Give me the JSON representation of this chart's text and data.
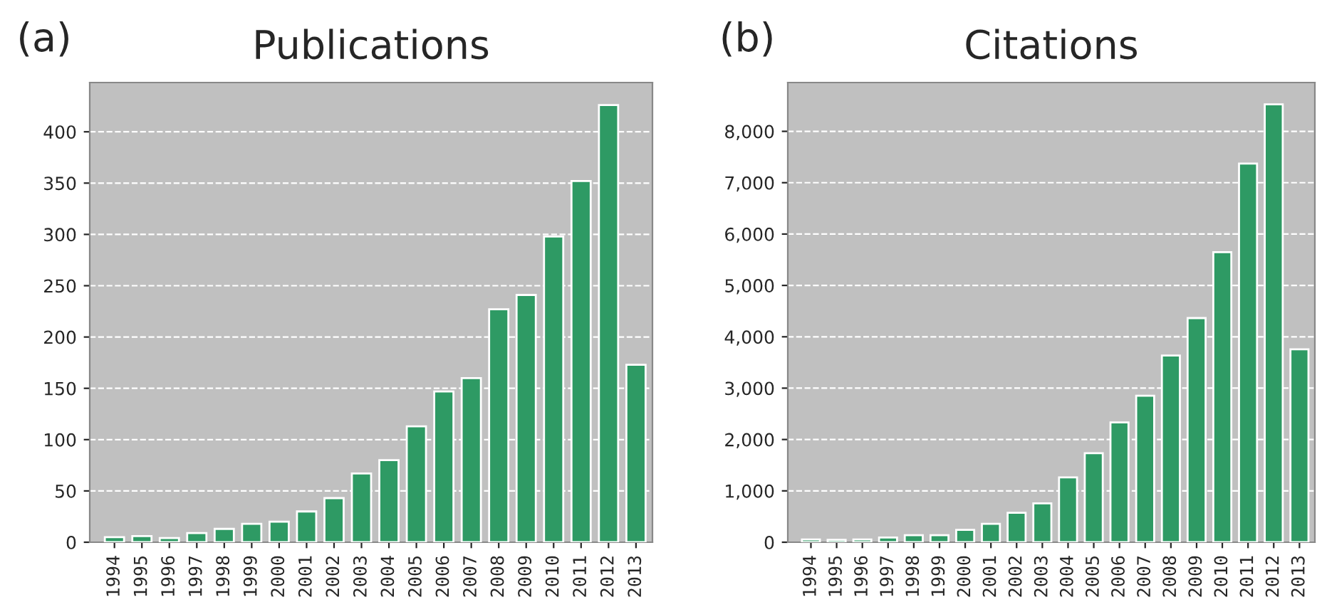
{
  "chart_data": [
    {
      "type": "bar",
      "title": "Publications",
      "annotations": [
        "(a)"
      ],
      "categories": [
        "1994",
        "1995",
        "1996",
        "1997",
        "1998",
        "1999",
        "2000",
        "2001",
        "2002",
        "2003",
        "2004",
        "2005",
        "2006",
        "2007",
        "2008",
        "2009",
        "2010",
        "2011",
        "2012",
        "2013"
      ],
      "series": [
        {
          "color": "#2e9a64",
          "values": [
            5,
            6,
            4,
            9,
            13,
            18,
            20,
            30,
            43,
            67,
            80,
            113,
            147,
            160,
            227,
            241,
            298,
            352,
            426,
            173
          ]
        }
      ],
      "ylim": [
        0,
        448
      ],
      "yticks": [
        0,
        50,
        100,
        150,
        200,
        250,
        300,
        350,
        400
      ],
      "grid": "y"
    },
    {
      "type": "bar",
      "title": "Citations",
      "annotations": [
        "(b)"
      ],
      "categories": [
        "1994",
        "1995",
        "1996",
        "1997",
        "1998",
        "1999",
        "2000",
        "2001",
        "2002",
        "2003",
        "2004",
        "2005",
        "2006",
        "2007",
        "2008",
        "2009",
        "2010",
        "2011",
        "2012",
        "2013"
      ],
      "series": [
        {
          "color": "#2e9a64",
          "values": [
            55,
            46,
            55,
            92,
            138,
            138,
            240,
            360,
            572,
            757,
            1264,
            1735,
            2334,
            2851,
            3635,
            4364,
            5647,
            7372,
            8526,
            3755
          ]
        }
      ],
      "ylim": [
        0,
        8950
      ],
      "yticks": [
        0,
        {
          "value": 1000,
          "label": "1,000"
        },
        {
          "value": 2000,
          "label": "2,000"
        },
        {
          "value": 3000,
          "label": "3,000"
        },
        {
          "value": 4000,
          "label": "4,000"
        },
        {
          "value": 5000,
          "label": "5,000"
        },
        {
          "value": 6000,
          "label": "6,000"
        },
        {
          "value": 7000,
          "label": "7,000"
        },
        {
          "value": 8000,
          "label": "8,000"
        }
      ],
      "grid": "y"
    }
  ]
}
